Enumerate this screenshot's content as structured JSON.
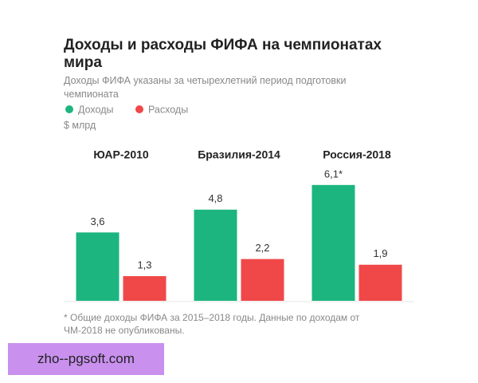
{
  "chart_data": {
    "type": "bar",
    "title": "Доходы и расходы ФИФА на чемпионатах мира",
    "subtitle": "Доходы ФИФА указаны за четырехлетний период подготовки чемпионата",
    "unit": "$ млрд",
    "categories": [
      "ЮАР-2010",
      "Бразилия-2014",
      "Россия-2018"
    ],
    "series": [
      {
        "name": "Доходы",
        "color": "#1db57f",
        "values": [
          3.6,
          4.8,
          6.1
        ],
        "value_labels": [
          "3,6",
          "4,8",
          "6,1*"
        ]
      },
      {
        "name": "Расходы",
        "color": "#f04848",
        "values": [
          1.3,
          2.2,
          1.9
        ],
        "value_labels": [
          "1,3",
          "2,2",
          "1,9"
        ]
      }
    ],
    "note": "* Общие доходы ФИФА за 2015–2018 годы. Данные по доходам от ЧМ-2018 не опубликованы."
  },
  "watermark": "zho--pgsoft.com"
}
